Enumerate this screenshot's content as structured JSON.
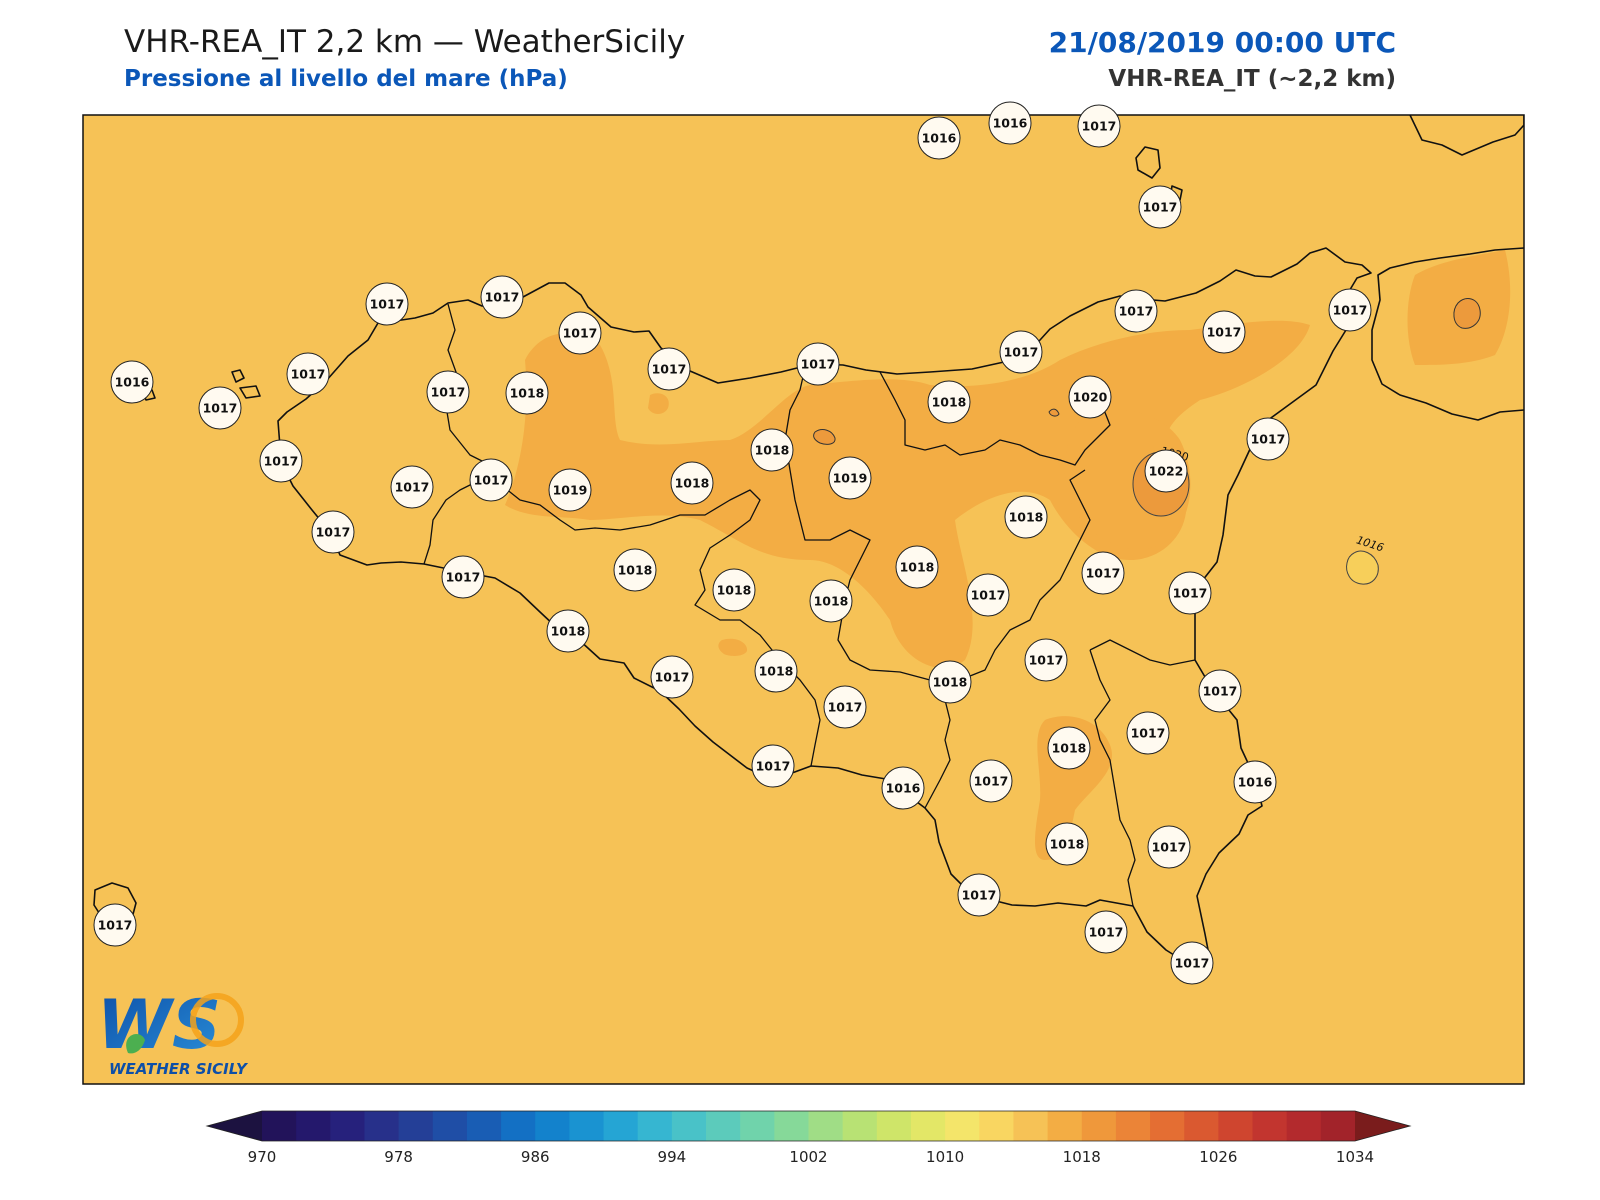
{
  "header": {
    "title": "VHR-REA_IT 2,2 km — WeatherSicily",
    "subtitle": "Pressione al livello del mare (hPa)",
    "datetime": "21/08/2019 00:00 UTC",
    "model": "VHR-REA_IT (~2,2 km)"
  },
  "logo": {
    "letters": "WS",
    "text": "WEATHER SICILY"
  },
  "colors": {
    "background_field": "#f6c256",
    "high_field": "#f3ad44",
    "peak_field": "#ec9a3c",
    "low_spot": "#f7cf5a",
    "coast": "#111111",
    "title_blue": "#0b57b8"
  },
  "contour_labels": [
    "1020",
    "1016"
  ],
  "stations": [
    {
      "value": "1016"
    },
    {
      "value": "1016"
    },
    {
      "value": "1017"
    },
    {
      "value": "1017"
    },
    {
      "value": "1017"
    },
    {
      "value": "1017"
    },
    {
      "value": "1017"
    },
    {
      "value": "1017"
    },
    {
      "value": "1017"
    },
    {
      "value": "1017"
    },
    {
      "value": "1016"
    },
    {
      "value": "1017"
    },
    {
      "value": "1017"
    },
    {
      "value": "1017"
    },
    {
      "value": "1018"
    },
    {
      "value": "1017"
    },
    {
      "value": "1017"
    },
    {
      "value": "1017"
    },
    {
      "value": "1020"
    },
    {
      "value": "1018"
    },
    {
      "value": "1018"
    },
    {
      "value": "1019"
    },
    {
      "value": "1019"
    },
    {
      "value": "1017"
    },
    {
      "value": "1017"
    },
    {
      "value": "1018"
    },
    {
      "value": "1017"
    },
    {
      "value": "1018"
    },
    {
      "value": "1022"
    },
    {
      "value": "1017"
    },
    {
      "value": "1018"
    },
    {
      "value": "1018"
    },
    {
      "value": "1018"
    },
    {
      "value": "1017"
    },
    {
      "value": "1018"
    },
    {
      "value": "1017"
    },
    {
      "value": "1016"
    },
    {
      "value": "1017"
    },
    {
      "value": "1017"
    },
    {
      "value": "1018"
    },
    {
      "value": "1017"
    },
    {
      "value": "1018"
    },
    {
      "value": "1017"
    },
    {
      "value": "1018"
    },
    {
      "value": "1017"
    },
    {
      "value": "1017"
    },
    {
      "value": "1017"
    },
    {
      "value": "1017"
    },
    {
      "value": "1018"
    },
    {
      "value": "1017"
    },
    {
      "value": "1016"
    },
    {
      "value": "1018"
    },
    {
      "value": "1017"
    },
    {
      "value": "1017"
    },
    {
      "value": "1017"
    },
    {
      "value": "1017"
    },
    {
      "value": "1017"
    },
    {
      "value": "1017"
    }
  ],
  "colorbar": {
    "min": 970,
    "max": 1034,
    "step": 2,
    "ticks": [
      "970",
      "978",
      "986",
      "994",
      "1002",
      "1010",
      "1018",
      "1026",
      "1034"
    ],
    "under_color": "#1c1240",
    "over_color": "#7a1c1c",
    "colors": [
      "#22135a",
      "#24186c",
      "#26217c",
      "#27308a",
      "#243f97",
      "#1f4ea6",
      "#195db4",
      "#1370c4",
      "#1382cc",
      "#1a93d1",
      "#25a5d4",
      "#36b6d1",
      "#49c2c8",
      "#5ccbbb",
      "#70d3ab",
      "#86d999",
      "#a0dd86",
      "#b8e274",
      "#cfe569",
      "#e3e767",
      "#f4e56a",
      "#f9d661",
      "#f6c256",
      "#f3ad44",
      "#ef983b",
      "#eb8437",
      "#e46e33",
      "#da5930",
      "#cf452f",
      "#c2352f",
      "#b32a2d",
      "#a2232a"
    ]
  }
}
